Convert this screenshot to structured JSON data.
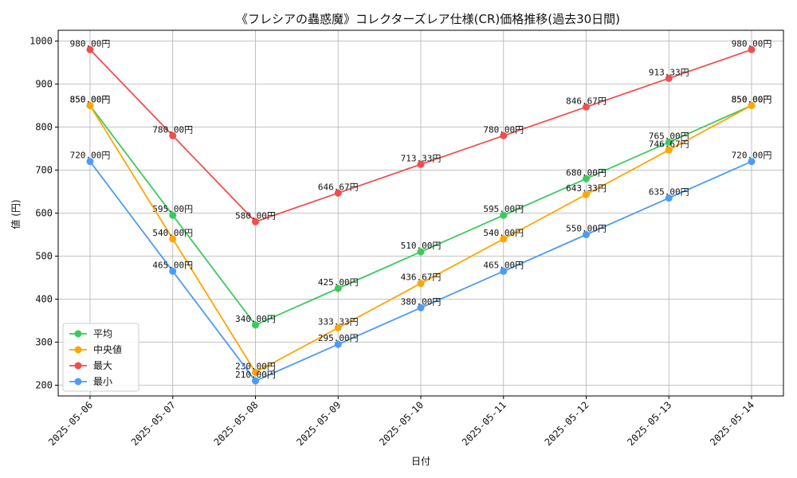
{
  "chart_data": {
    "type": "line",
    "title": "《フレシアの蟲惑魔》コレクターズレア仕様(CR)価格推移(過去30日間)",
    "xlabel": "日付",
    "ylabel": "値 (円)",
    "ylim": [
      175,
      1025
    ],
    "yticks": [
      200,
      300,
      400,
      500,
      600,
      700,
      800,
      900,
      1000
    ],
    "x": [
      "2025-05-06",
      "2025-05-07",
      "2025-05-08",
      "2025-05-09",
      "2025-05-10",
      "2025-05-11",
      "2025-05-12",
      "2025-05-13",
      "2025-05-14"
    ],
    "grid": true,
    "legend_position": "lower-left",
    "series": [
      {
        "name": "平均",
        "color": "#3cc95e",
        "values": [
          850.0,
          595.0,
          340.0,
          425.0,
          510.0,
          595.0,
          680.0,
          765.0,
          850.0
        ],
        "labels": [
          "850.00円",
          "595.00円",
          "340.00円",
          "425.00円",
          "510.00円",
          "595.00円",
          "680.00円",
          "765.00円",
          "850.00円"
        ]
      },
      {
        "name": "中央値",
        "color": "#ffa500",
        "values": [
          850.0,
          540.0,
          230.0,
          333.33,
          436.67,
          540.0,
          643.33,
          746.67,
          850.0
        ],
        "labels": [
          "850.00円",
          "540.00円",
          "230.00円",
          "333.33円",
          "436.67円",
          "540.00円",
          "643.33円",
          "746.67円",
          "850.00円"
        ]
      },
      {
        "name": "最大",
        "color": "#f04e4e",
        "values": [
          980.0,
          780.0,
          580.0,
          646.67,
          713.33,
          780.0,
          846.67,
          913.33,
          980.0
        ],
        "labels": [
          "980.00円",
          "780.00円",
          "580.00円",
          "646.67円",
          "713.33円",
          "780.00円",
          "846.67円",
          "913.33円",
          "980.00円"
        ]
      },
      {
        "name": "最小",
        "color": "#4d9bf5",
        "values": [
          720.0,
          465.0,
          210.0,
          295.0,
          380.0,
          465.0,
          550.0,
          635.0,
          720.0
        ],
        "labels": [
          "720.00円",
          "465.00円",
          "210.00円",
          "295.00円",
          "380.00円",
          "465.00円",
          "550.00円",
          "635.00円",
          "720.00円"
        ]
      }
    ]
  }
}
